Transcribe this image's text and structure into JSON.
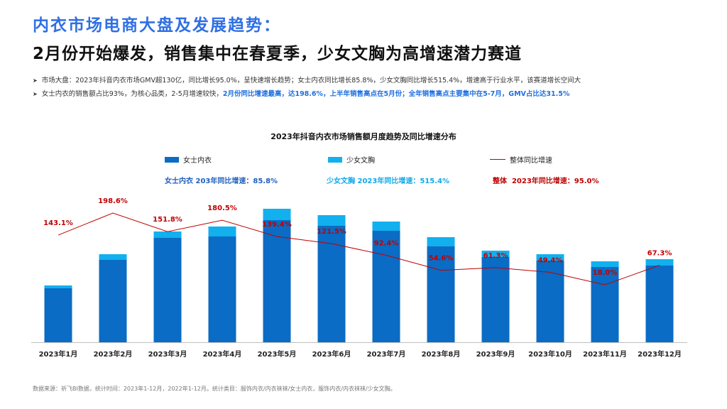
{
  "header": {
    "title": "内衣市场电商大盘及发展趋势：",
    "subtitle": "2月份开始爆发，销售集中在春夏季，少女文胸为高增速潜力赛道"
  },
  "bullets": {
    "b1": "市场大盘：2023年抖音内衣市场GMV超130亿，同比增长95.0%，呈快速增长趋势；女士内衣同比增长85.8%，少女文胸同比增长515.4%，增速高于行业水平，该赛道增长空间大",
    "b2_plain": "女士内衣的销售额占比93%，为核心品类，2-5月增速较快，",
    "b2_highlight": "2月份同比增速最高，达198.6%，上半年销售高点在5月份；全年销售高点主要集中在5-7月，GMV占比达31.5%"
  },
  "notes": {
    "women": "女士内衣  203年同比增速：85.8%",
    "girls": "少女文胸  2023年同比增速：515.4%",
    "overall_label": "整体",
    "overall_value": "2023年同比增速：95.0%"
  },
  "footer": {
    "source": "数据来源：祈飞BI数据，统计时间：2023年1-12月，2022年1-12月。统计类目：服饰内衣/内衣袜袜/女士内衣，服饰内衣/内衣袜袜/少女文胸。"
  },
  "colors": {
    "women": "#0a6cc4",
    "girls": "#12b0ee",
    "line": "#c00000"
  },
  "chart_data": {
    "type": "bar",
    "stacked": true,
    "title": "2023年抖音内衣市场销售额月度趋势及同比增速分布",
    "categories": [
      "2023年1月",
      "2023年2月",
      "2023年3月",
      "2023年4月",
      "2023年5月",
      "2023年6月",
      "2023年7月",
      "2023年8月",
      "2023年9月",
      "2023年10月",
      "2023年11月",
      "2023年12月"
    ],
    "series": [
      {
        "name": "女士内衣",
        "values": [
          76,
          116,
          147,
          149,
          172,
          164,
          157,
          135,
          120,
          115,
          106,
          108
        ]
      },
      {
        "name": "少女文胸",
        "values": [
          4,
          8,
          9,
          14,
          16,
          15,
          13,
          13,
          9,
          9,
          8,
          9
        ]
      }
    ],
    "line_series": {
      "name": "整体同比增速",
      "values": [
        143.1,
        198.6,
        151.8,
        180.5,
        139.4,
        121.5,
        92.4,
        54.6,
        61.3,
        49.4,
        18.0,
        67.3
      ],
      "labels": [
        "143.1%",
        "198.6%",
        "151.8%",
        "180.5%",
        "139.4%",
        "121.5%",
        "92.4%",
        "54.6%",
        "61.3%",
        "49.4%",
        "18.0%",
        "67.3%"
      ]
    },
    "ylim": [
      0,
      200
    ],
    "grid": false,
    "legend": "top"
  }
}
